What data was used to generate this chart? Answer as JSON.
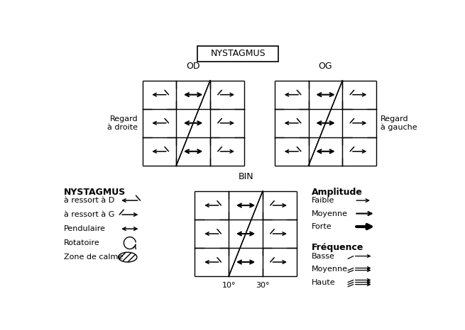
{
  "title": "NYSTAGMUS",
  "od_label": "OD",
  "og_label": "OG",
  "bin_label": "BIN",
  "regard_droite": "Regard\nà droite",
  "regard_gauche": "Regard\nà gauche",
  "legend_title": "NYSTAGMUS",
  "legend_items": [
    "à ressort à D",
    "à ressort à G",
    "Pendulaire",
    "Rotatoire",
    "Zone de calme"
  ],
  "amplitude_title": "Amplitude",
  "amplitude_items": [
    "Faible",
    "Moyenne",
    "Forte"
  ],
  "frequence_title": "Fréquence",
  "frequence_items": [
    "Basse",
    "Moyenne",
    "Haute"
  ],
  "degree_labels": [
    "10°",
    "30°"
  ],
  "bg_color": "#ffffff",
  "text_color": "#000000"
}
